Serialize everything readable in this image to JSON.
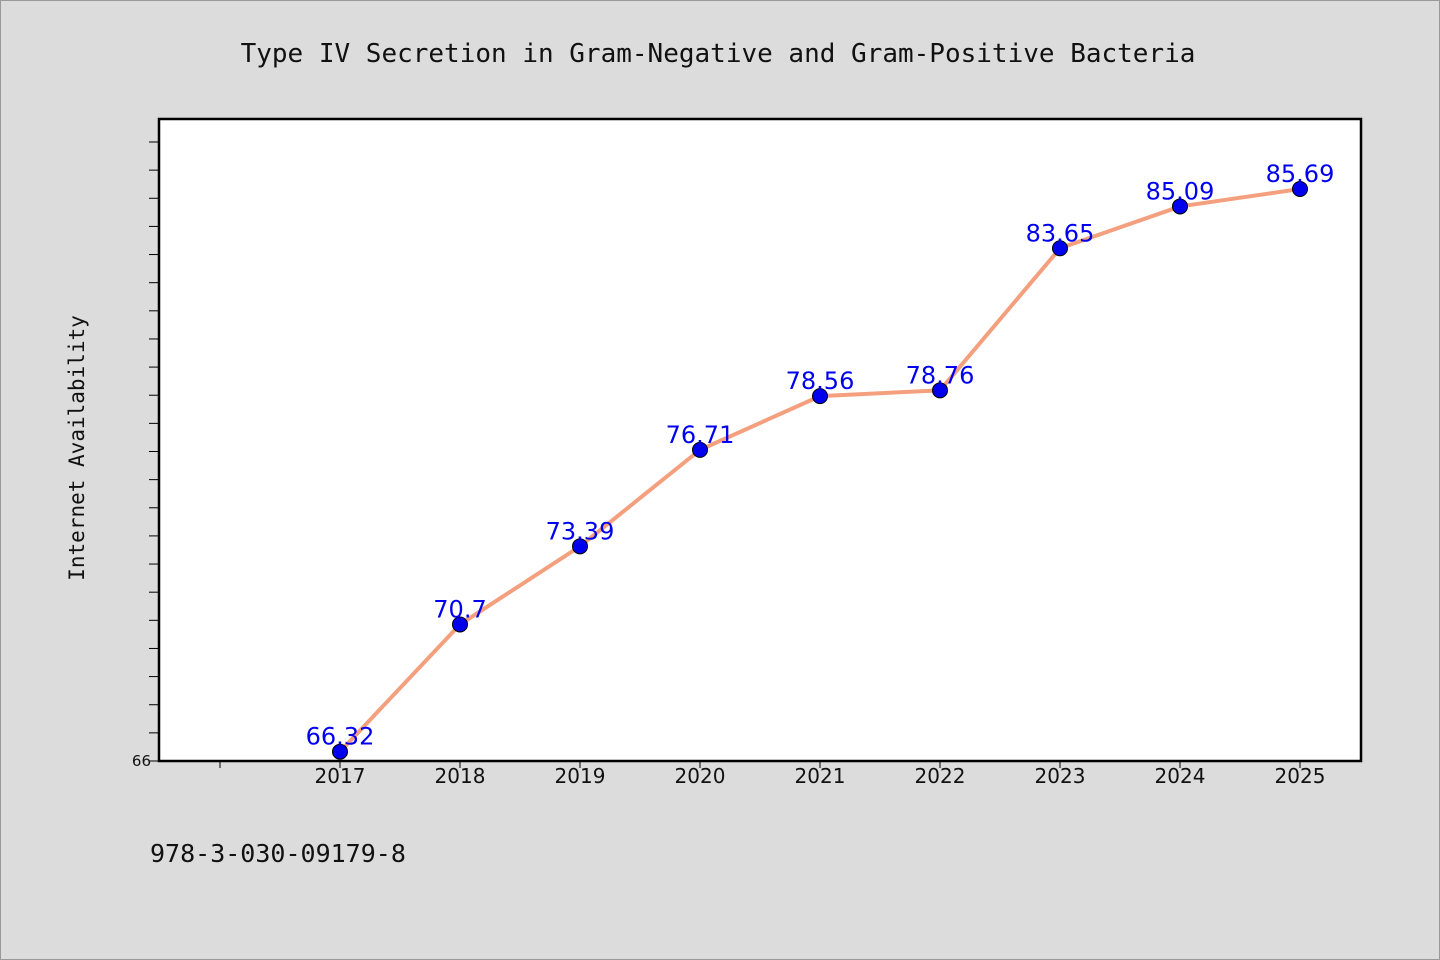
{
  "chart_data": {
    "type": "line",
    "title": "Type IV Secretion in Gram-Negative and Gram-Positive Bacteria",
    "xlabel": "",
    "ylabel": "Internet Availability",
    "categories": [
      "2017",
      "2018",
      "2019",
      "2020",
      "2021",
      "2022",
      "2023",
      "2024",
      "2025"
    ],
    "series": [
      {
        "values": [
          66.32,
          70.7,
          73.39,
          76.71,
          78.56,
          78.76,
          83.65,
          85.09,
          85.69
        ],
        "labels": [
          "66.32",
          "70.7",
          "73.39",
          "76.71",
          "78.56",
          "78.76",
          "83.65",
          "85.09",
          "85.69"
        ]
      }
    ],
    "y_tick_labels": [
      "66"
    ],
    "ylim": [
      66,
      88.1
    ],
    "grid": false,
    "legend": "none",
    "colors": {
      "line": "#f4a07e",
      "marker": "#0000ee",
      "label": "#0000ee",
      "plot_bg": "#ffffff",
      "page_bg": "#dcdcdc"
    }
  },
  "footer": {
    "isbn": "978-3-030-09179-8"
  }
}
